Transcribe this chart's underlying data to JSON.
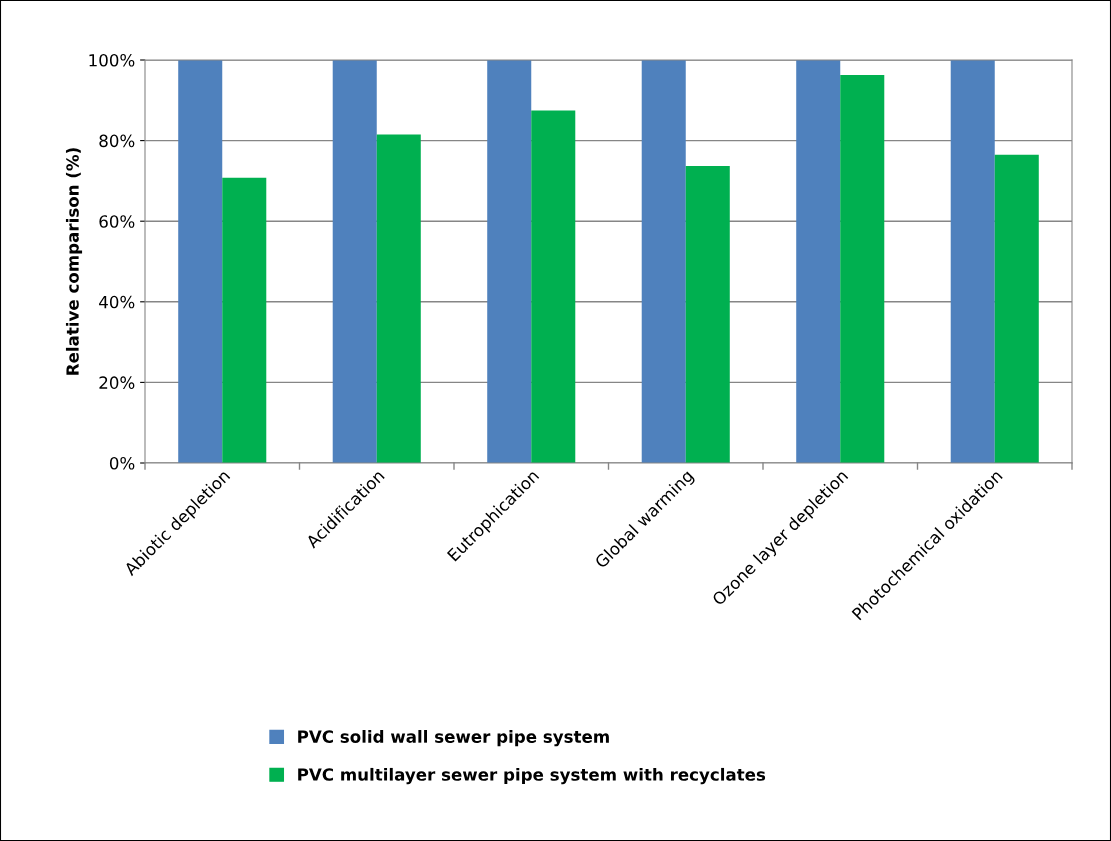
{
  "chart_data": {
    "type": "bar",
    "ylabel": "Relative comparison (%)",
    "categories": [
      "Abiotic depletion",
      "Acidification",
      "Eutrophication",
      "Global warming",
      "Ozone layer depletion",
      "Photochemical oxidation"
    ],
    "series": [
      {
        "name": "PVC solid wall sewer pipe system",
        "color": "#4f81bd",
        "values": [
          100,
          100,
          100,
          100,
          100,
          100
        ]
      },
      {
        "name": "PVC multilayer sewer pipe system with recyclates",
        "color": "#00b050",
        "values": [
          70.8,
          81.5,
          87.5,
          73.7,
          96.3,
          76.5
        ]
      }
    ],
    "ylim": [
      0,
      100
    ],
    "yticks": [
      {
        "value": 0,
        "label": "0%"
      },
      {
        "value": 20,
        "label": "20%"
      },
      {
        "value": 40,
        "label": "40%"
      },
      {
        "value": 60,
        "label": "60%"
      },
      {
        "value": 80,
        "label": "80%"
      },
      {
        "value": 100,
        "label": "100%"
      }
    ],
    "grid": "y",
    "legend": "bottom"
  }
}
